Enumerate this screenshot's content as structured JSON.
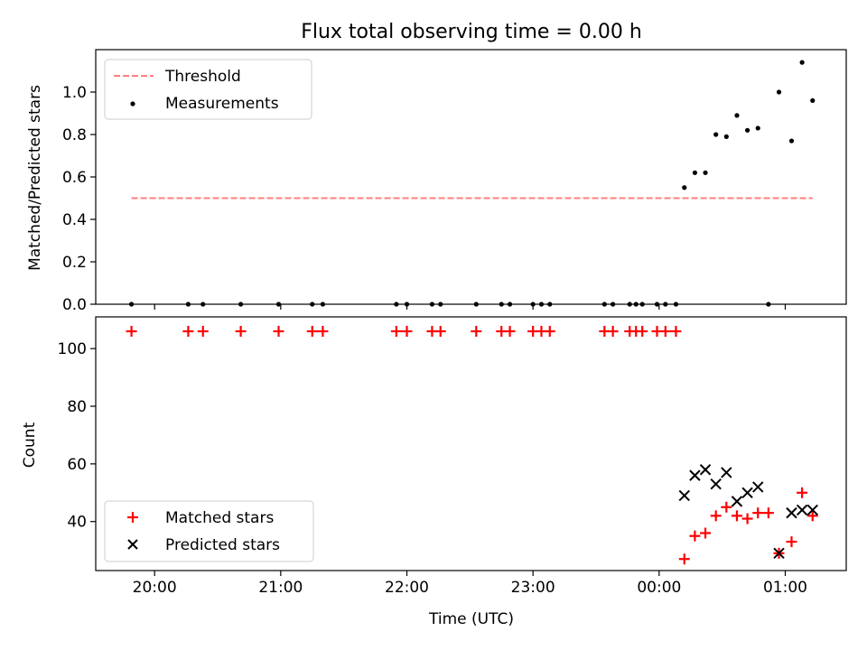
{
  "chart_data": [
    {
      "type": "scatter",
      "title": "Flux total observing time = 0.00 h",
      "xlabel": "",
      "ylabel": "Matched/Predicted stars",
      "xlim": [
        "19:32",
        "01:29"
      ],
      "ylim": [
        0.0,
        1.2
      ],
      "yticks": [
        "0.0",
        "0.2",
        "0.4",
        "0.6",
        "0.8",
        "1.0"
      ],
      "legend_position": "top-left",
      "threshold": {
        "name": "Threshold",
        "value": 0.5,
        "x_start": "19:49",
        "x_end": "01:13",
        "color": "#ff7f7f",
        "style": "dashed"
      },
      "series": [
        {
          "name": "Measurements",
          "color": "#000000",
          "marker": "dot",
          "points": [
            [
              "19:49",
              0.0
            ],
            [
              "20:16",
              0.0
            ],
            [
              "20:23",
              0.0
            ],
            [
              "20:41",
              0.0
            ],
            [
              "20:59",
              0.0
            ],
            [
              "21:15",
              0.0
            ],
            [
              "21:20",
              0.0
            ],
            [
              "21:55",
              0.0
            ],
            [
              "22:00",
              0.0
            ],
            [
              "22:12",
              0.0
            ],
            [
              "22:16",
              0.0
            ],
            [
              "22:33",
              0.0
            ],
            [
              "22:45",
              0.0
            ],
            [
              "22:49",
              0.0
            ],
            [
              "23:00",
              0.0
            ],
            [
              "23:04",
              0.0
            ],
            [
              "23:08",
              0.0
            ],
            [
              "23:34",
              0.0
            ],
            [
              "23:38",
              0.0
            ],
            [
              "23:46",
              0.0
            ],
            [
              "23:49",
              0.0
            ],
            [
              "23:52",
              0.0
            ],
            [
              "23:59",
              0.0
            ],
            [
              "00:03",
              0.0
            ],
            [
              "00:08",
              0.0
            ],
            [
              "00:12",
              0.55
            ],
            [
              "00:17",
              0.62
            ],
            [
              "00:22",
              0.62
            ],
            [
              "00:27",
              0.8
            ],
            [
              "00:32",
              0.79
            ],
            [
              "00:37",
              0.89
            ],
            [
              "00:42",
              0.82
            ],
            [
              "00:47",
              0.83
            ],
            [
              "00:52",
              0.0
            ],
            [
              "00:57",
              1.0
            ],
            [
              "01:03",
              0.77
            ],
            [
              "01:08",
              1.14
            ],
            [
              "01:13",
              0.96
            ]
          ]
        }
      ]
    },
    {
      "type": "scatter",
      "title": "",
      "xlabel": "Time (UTC)",
      "ylabel": "Count",
      "xlim": [
        "19:32",
        "01:29"
      ],
      "ylim": [
        23,
        111
      ],
      "xticks": [
        "20:00",
        "21:00",
        "22:00",
        "23:00",
        "00:00",
        "01:00"
      ],
      "yticks": [
        "40",
        "60",
        "80",
        "100"
      ],
      "legend_position": "bottom-left",
      "series": [
        {
          "name": "Matched stars",
          "color": "#ff0000",
          "marker": "plus",
          "points": [
            [
              "19:49",
              106
            ],
            [
              "20:16",
              106
            ],
            [
              "20:23",
              106
            ],
            [
              "20:41",
              106
            ],
            [
              "20:59",
              106
            ],
            [
              "21:15",
              106
            ],
            [
              "21:20",
              106
            ],
            [
              "21:55",
              106
            ],
            [
              "22:00",
              106
            ],
            [
              "22:12",
              106
            ],
            [
              "22:16",
              106
            ],
            [
              "22:33",
              106
            ],
            [
              "22:45",
              106
            ],
            [
              "22:49",
              106
            ],
            [
              "23:00",
              106
            ],
            [
              "23:04",
              106
            ],
            [
              "23:08",
              106
            ],
            [
              "23:34",
              106
            ],
            [
              "23:38",
              106
            ],
            [
              "23:46",
              106
            ],
            [
              "23:49",
              106
            ],
            [
              "23:52",
              106
            ],
            [
              "23:59",
              106
            ],
            [
              "00:03",
              106
            ],
            [
              "00:08",
              106
            ],
            [
              "00:12",
              27
            ],
            [
              "00:17",
              35
            ],
            [
              "00:22",
              36
            ],
            [
              "00:27",
              42
            ],
            [
              "00:32",
              45
            ],
            [
              "00:37",
              42
            ],
            [
              "00:42",
              41
            ],
            [
              "00:47",
              43
            ],
            [
              "00:52",
              43
            ],
            [
              "00:57",
              29
            ],
            [
              "01:03",
              33
            ],
            [
              "01:08",
              50
            ],
            [
              "01:13",
              42
            ]
          ]
        },
        {
          "name": "Predicted stars",
          "color": "#000000",
          "marker": "x",
          "points": [
            [
              "00:12",
              49
            ],
            [
              "00:17",
              56
            ],
            [
              "00:22",
              58
            ],
            [
              "00:27",
              53
            ],
            [
              "00:32",
              57
            ],
            [
              "00:37",
              47
            ],
            [
              "00:42",
              50
            ],
            [
              "00:47",
              52
            ],
            [
              "00:57",
              29
            ],
            [
              "01:03",
              43
            ],
            [
              "01:08",
              44
            ],
            [
              "01:13",
              44
            ]
          ]
        }
      ]
    }
  ]
}
